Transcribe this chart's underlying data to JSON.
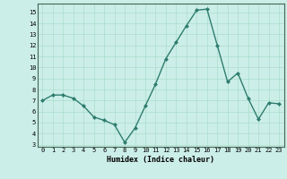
{
  "x": [
    0,
    1,
    2,
    3,
    4,
    5,
    6,
    7,
    8,
    9,
    10,
    11,
    12,
    13,
    14,
    15,
    16,
    17,
    18,
    19,
    20,
    21,
    22,
    23
  ],
  "y": [
    7.0,
    7.5,
    7.5,
    7.2,
    6.5,
    5.5,
    5.2,
    4.8,
    3.2,
    4.5,
    6.5,
    8.5,
    10.8,
    12.3,
    13.8,
    15.2,
    15.3,
    12.0,
    8.7,
    9.5,
    7.2,
    5.3,
    6.8,
    6.7
  ],
  "xlabel": "Humidex (Indice chaleur)",
  "ylabel": "",
  "line_color": "#2e7d6e",
  "bg_color": "#cceee8",
  "grid_color": "#aaddcc",
  "xlim": [
    -0.5,
    23.5
  ],
  "ylim": [
    2.8,
    15.8
  ],
  "yticks": [
    3,
    4,
    5,
    6,
    7,
    8,
    9,
    10,
    11,
    12,
    13,
    14,
    15
  ],
  "xticks": [
    0,
    1,
    2,
    3,
    4,
    5,
    6,
    7,
    8,
    9,
    10,
    11,
    12,
    13,
    14,
    15,
    16,
    17,
    18,
    19,
    20,
    21,
    22,
    23
  ]
}
